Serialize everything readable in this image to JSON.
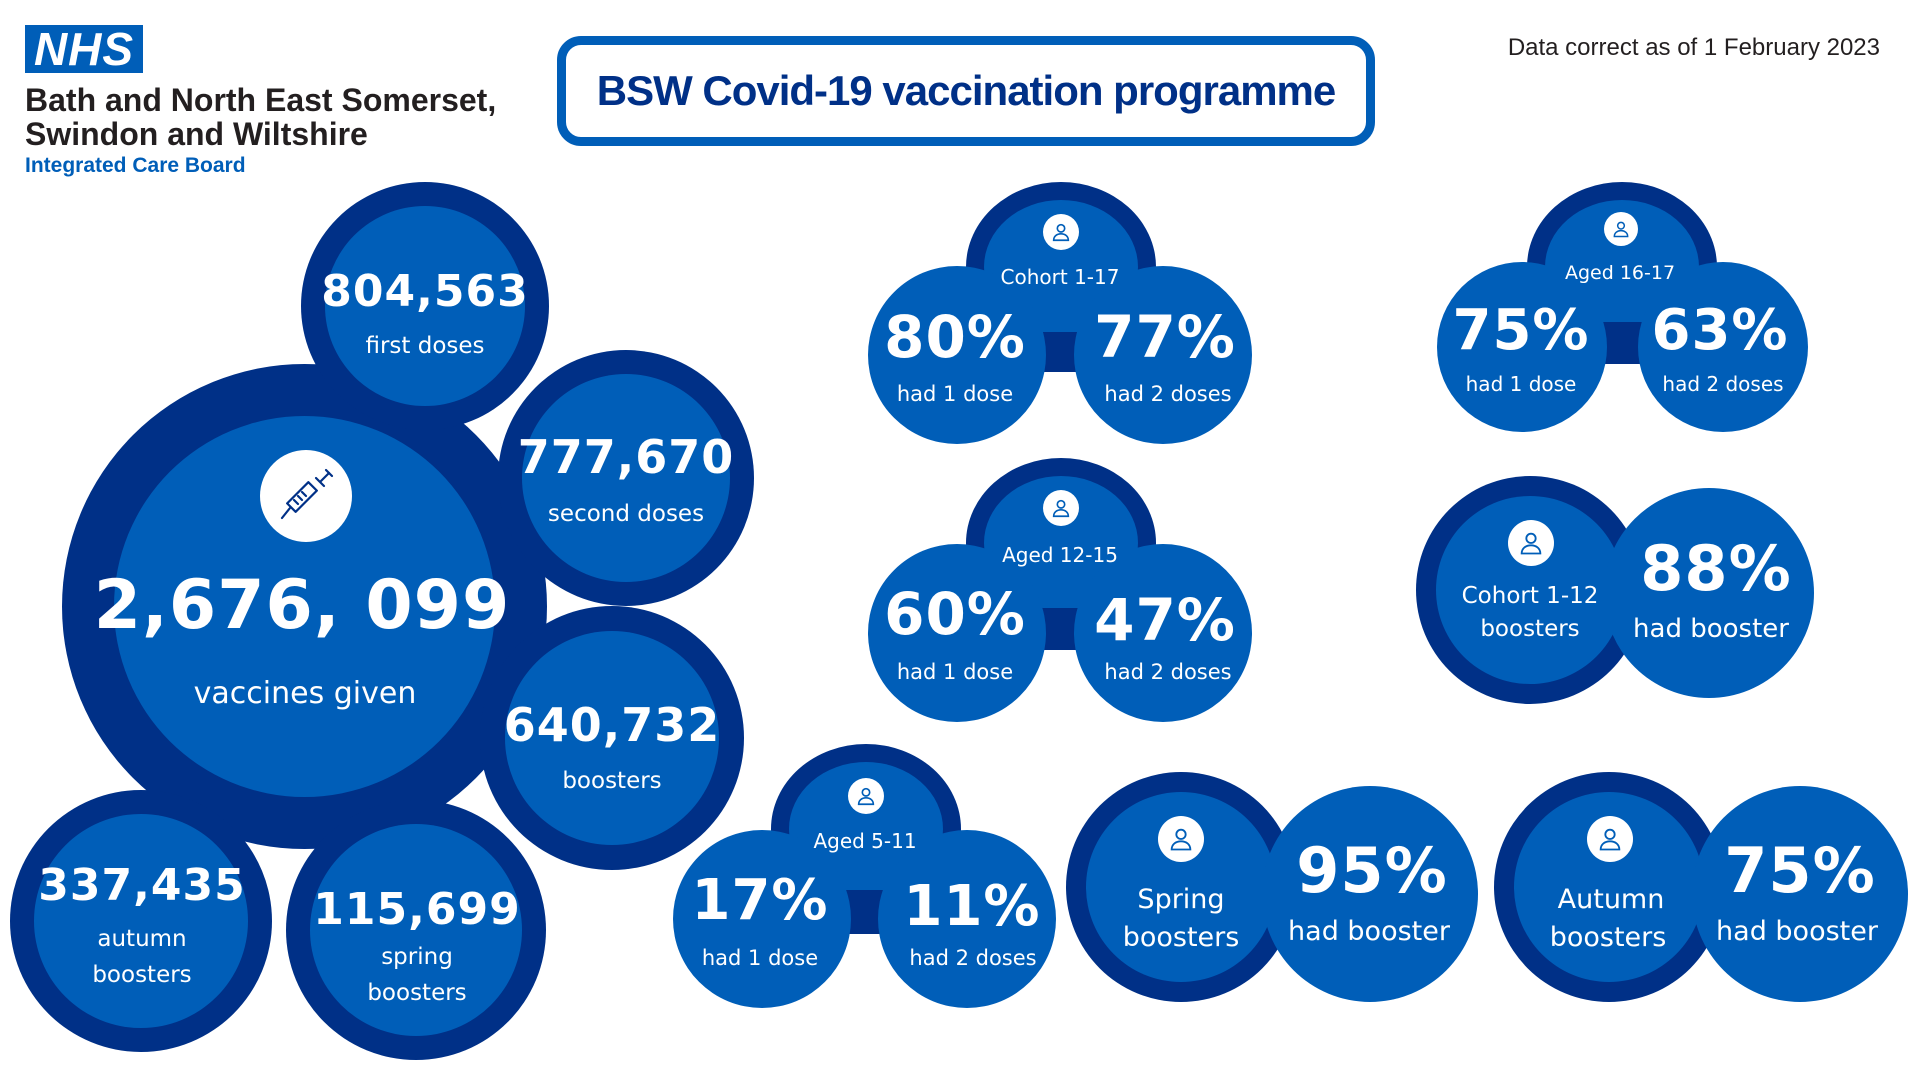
{
  "header": {
    "logo_text": "NHS",
    "org_line1": "Bath and North East Somerset,",
    "org_line2": "Swindon and Wiltshire",
    "org_line3": "Integrated Care Board",
    "title": "BSW Covid-19 vaccination programme",
    "date_note": "Data correct as of 1 February 2023"
  },
  "colors": {
    "dark_blue": "#003087",
    "nhs_blue": "#005eb8",
    "white": "#ffffff"
  },
  "totals": {
    "main": {
      "value": "2,676, 099",
      "label": "vaccines given",
      "icon": "syringe-icon"
    },
    "first": {
      "value": "804,563",
      "label": "first doses"
    },
    "second": {
      "value": "777,670",
      "label": "second doses"
    },
    "boosters": {
      "value": "640,732",
      "label": "boosters"
    },
    "autumn": {
      "value": "337,435",
      "label1": "autumn",
      "label2": "boosters"
    },
    "spring": {
      "value": "115,699",
      "label1": "spring",
      "label2": "boosters"
    }
  },
  "cohorts": [
    {
      "name": "Cohort 1-17",
      "dose1_pct": "80%",
      "dose1_label": "had 1 dose",
      "dose2_pct": "77%",
      "dose2_label": "had 2 doses"
    },
    {
      "name": "Aged 16-17",
      "dose1_pct": "75%",
      "dose1_label": "had 1 dose",
      "dose2_pct": "63%",
      "dose2_label": "had 2 doses"
    },
    {
      "name": "Aged 12-15",
      "dose1_pct": "60%",
      "dose1_label": "had 1 dose",
      "dose2_pct": "47%",
      "dose2_label": "had 2 doses"
    },
    {
      "name": "Aged 5-11",
      "dose1_pct": "17%",
      "dose1_label": "had 1 dose",
      "dose2_pct": "11%",
      "dose2_label": "had 2 doses"
    }
  ],
  "booster_groups": [
    {
      "name1": "Cohort 1-12",
      "name2": "boosters",
      "pct": "88%",
      "label": "had booster"
    },
    {
      "name1": "Spring",
      "name2": "boosters",
      "pct": "95%",
      "label": "had booster"
    },
    {
      "name1": "Autumn",
      "name2": "boosters",
      "pct": "75%",
      "label": "had booster"
    }
  ],
  "icons": {
    "person": "person-icon",
    "syringe": "syringe-icon"
  }
}
